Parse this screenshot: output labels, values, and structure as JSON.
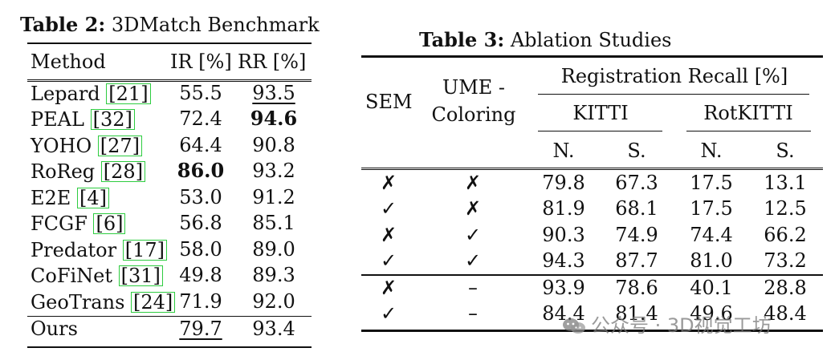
{
  "table2": {
    "caption_label": "Table 2:",
    "caption_text": " 3DMatch Benchmark",
    "headers": [
      "Method",
      "IR [%]",
      "RR [%]"
    ],
    "rows": [
      {
        "method": "Lepard",
        "ref": "[21]",
        "ir": "55.5",
        "rr": "93.5",
        "rr_style": "underline"
      },
      {
        "method": "PEAL",
        "ref": "[32]",
        "ir": "72.4",
        "rr": "94.6",
        "rr_style": "bold"
      },
      {
        "method": "YOHO",
        "ref": "[27]",
        "ir": "64.4",
        "rr": "90.8"
      },
      {
        "method": "RoReg",
        "ref": "[28]",
        "ir": "86.0",
        "rr": "93.2",
        "ir_style": "bold"
      },
      {
        "method": "E2E",
        "ref": "[4]",
        "ir": "53.0",
        "rr": "91.2"
      },
      {
        "method": "FCGF",
        "ref": "[6]",
        "ir": "56.8",
        "rr": "85.1"
      },
      {
        "method": "Predator",
        "ref": "[17]",
        "ir": "58.0",
        "rr": "89.0"
      },
      {
        "method": "CoFiNet",
        "ref": "[31]",
        "ir": "49.8",
        "rr": "89.3"
      },
      {
        "method": "GeoTrans",
        "ref": "[24]",
        "ir": "71.9",
        "rr": "92.0"
      },
      {
        "method": "Ours",
        "ref": "",
        "ir": "79.7",
        "rr": "93.4",
        "ir_style": "underline"
      }
    ]
  },
  "table3": {
    "caption_label": "Table 3:",
    "caption_text": " Ablation Studies",
    "header_sem": "SEM",
    "header_ume_line1": "UME -",
    "header_ume_line2": "Coloring",
    "header_rr": "Registration Recall [%]",
    "header_kitti": "KITTI",
    "header_rotkitti": "RotKITTI",
    "header_n": "N.",
    "header_s": "S.",
    "rows": [
      {
        "sem": "✗",
        "ume": "✗",
        "kn": "79.8",
        "ks": "67.3",
        "rn": "17.5",
        "rs": "13.1"
      },
      {
        "sem": "✓",
        "ume": "✗",
        "kn": "81.9",
        "ks": "68.1",
        "rn": "17.5",
        "rs": "12.5"
      },
      {
        "sem": "✗",
        "ume": "✓",
        "kn": "90.3",
        "ks": "74.9",
        "rn": "74.4",
        "rs": "66.2"
      },
      {
        "sem": "✓",
        "ume": "✓",
        "kn": "94.3",
        "ks": "87.7",
        "rn": "81.0",
        "rs": "73.2"
      },
      {
        "sem": "✗",
        "ume": "–",
        "kn": "93.9",
        "ks": "78.6",
        "rn": "40.1",
        "rs": "28.8"
      },
      {
        "sem": "✓",
        "ume": "–",
        "kn": "84.4",
        "ks": "81.4",
        "rn": "49.6",
        "rs": "48.4"
      }
    ]
  },
  "watermark": {
    "text": "公众号 · 3D视觉工坊",
    "icon": "wechat-icon"
  }
}
